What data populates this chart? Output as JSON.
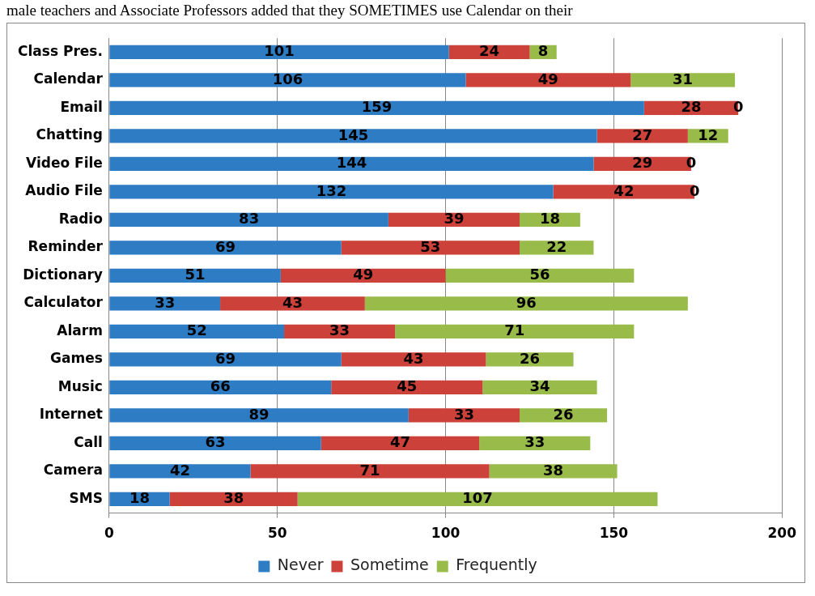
{
  "chart_data": {
    "type": "bar",
    "orientation": "horizontal",
    "stacked": true,
    "data_labels": true,
    "grid": "x",
    "legend": "bottom",
    "annotations": [
      "male teachers and Associate Professors added that they SOMETIMES use Calendar on their"
    ],
    "categories": [
      "Class Pres.",
      "Calendar",
      "Email",
      "Chatting",
      "Video File",
      "Audio File",
      "Radio",
      "Reminder",
      "Dictionary",
      "Calculator",
      "Alarm",
      "Games",
      "Music",
      "Internet",
      "Call",
      "Camera",
      "SMS"
    ],
    "series": [
      {
        "name": "Never",
        "color": "#2e7dc4",
        "values": [
          101,
          106,
          159,
          145,
          144,
          132,
          83,
          69,
          51,
          33,
          52,
          69,
          66,
          89,
          63,
          42,
          18
        ]
      },
      {
        "name": "Sometime",
        "color": "#cc4139",
        "values": [
          24,
          49,
          28,
          27,
          29,
          42,
          39,
          53,
          49,
          43,
          33,
          43,
          45,
          33,
          47,
          71,
          38
        ]
      },
      {
        "name": "Frequently",
        "color": "#98bb4a",
        "values": [
          8,
          31,
          0,
          12,
          0,
          0,
          18,
          22,
          56,
          96,
          71,
          26,
          34,
          26,
          33,
          38,
          107
        ]
      }
    ],
    "xlim": [
      0,
      200
    ],
    "xticks": [
      0,
      50,
      100,
      150,
      200
    ]
  }
}
